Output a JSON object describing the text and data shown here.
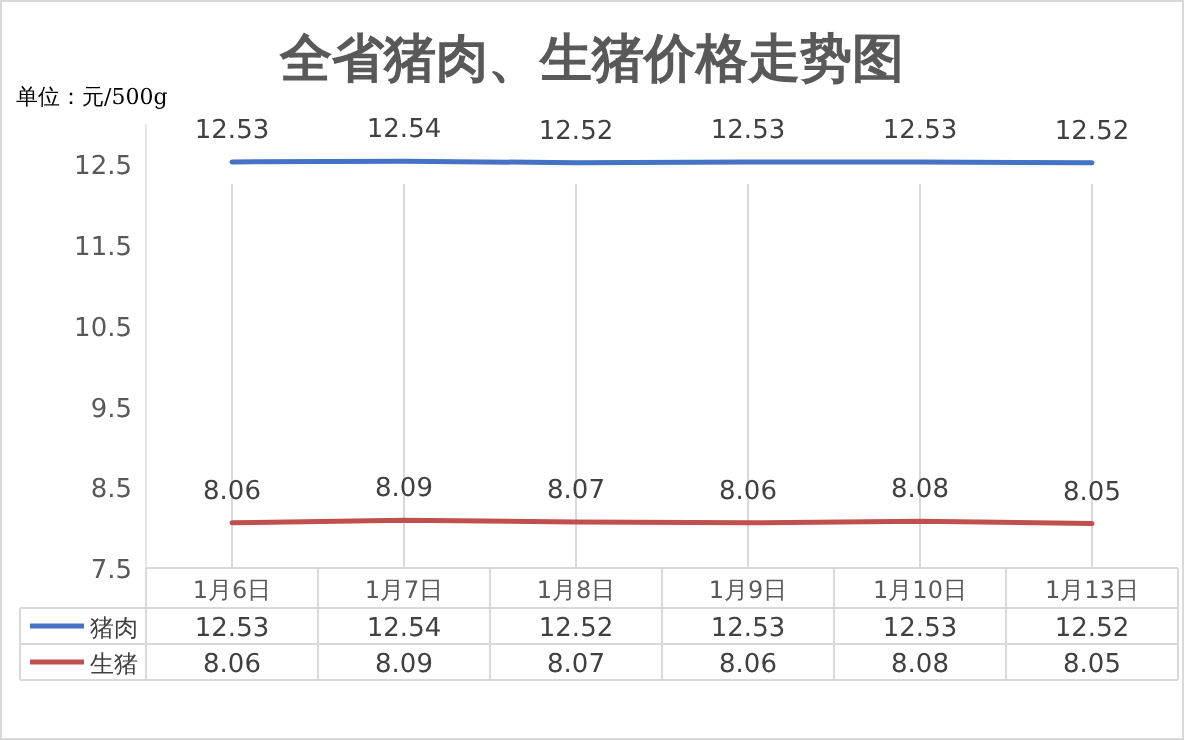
{
  "chart_data": {
    "type": "line",
    "title": "全省猪肉、生猪价格走势图",
    "annotations": [
      "单位：元/500g",
      "12.53",
      "12.54",
      "12.52",
      "12.53",
      "12.53",
      "12.52",
      "8.06",
      "8.09",
      "8.07",
      "8.06",
      "8.08",
      "8.05"
    ],
    "categories": [
      "1月6日",
      "1月7日",
      "1月8日",
      "1月9日",
      "1月10日",
      "1月13日"
    ],
    "series": [
      {
        "name": "猪肉",
        "color": "#4472c4",
        "values": [
          12.53,
          12.54,
          12.52,
          12.53,
          12.53,
          12.52
        ],
        "value_labels": [
          "12.53",
          "12.54",
          "12.52",
          "12.53",
          "12.53",
          "12.52"
        ]
      },
      {
        "name": "生猪",
        "color": "#c0504d",
        "values": [
          8.06,
          8.09,
          8.07,
          8.06,
          8.08,
          8.05
        ],
        "value_labels": [
          "8.06",
          "8.09",
          "8.07",
          "8.06",
          "8.08",
          "8.05"
        ]
      }
    ],
    "ylim": [
      7.5,
      13
    ],
    "yticks": [
      7.5,
      8.5,
      9.5,
      10.5,
      11.5,
      12.5
    ],
    "grid": "x",
    "legend": "bottom",
    "marker": "none",
    "line_style": "solid"
  }
}
